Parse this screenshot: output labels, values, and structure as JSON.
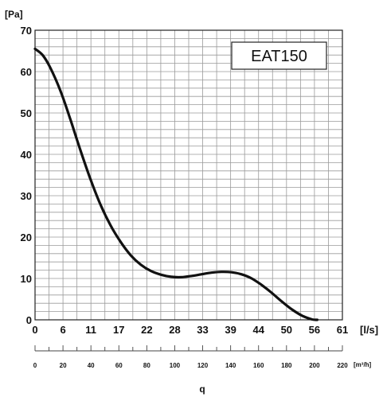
{
  "chart_data": {
    "type": "line",
    "title": "",
    "ylabel": "[Pa]",
    "xlabel": "[l/s]",
    "x2label": "[m³/h]",
    "bottom_label": "q",
    "annotation": "EAT150",
    "ylim": [
      0,
      70
    ],
    "xlim": [
      0,
      61
    ],
    "x2lim": [
      0,
      220
    ],
    "y_ticks": [
      "0",
      "10",
      "20",
      "30",
      "40",
      "50",
      "60",
      "70"
    ],
    "x_ticks": [
      "0",
      "6",
      "11",
      "17",
      "22",
      "28",
      "33",
      "39",
      "44",
      "50",
      "56",
      "61"
    ],
    "x2_ticks": [
      "0",
      "20",
      "40",
      "60",
      "80",
      "100",
      "120",
      "140",
      "160",
      "180",
      "200",
      "220"
    ],
    "grid": true,
    "series": [
      {
        "color": "#111111",
        "x": [
          0,
          1.5,
          3,
          5,
          7,
          9,
          11,
          13,
          15,
          17,
          19,
          21,
          23,
          25,
          27,
          29,
          31,
          33,
          35,
          37,
          39,
          41,
          43,
          45,
          47,
          49,
          51,
          53,
          55,
          56
        ],
        "y": [
          65.5,
          64,
          61,
          55.5,
          48.5,
          41,
          34,
          27.8,
          22.8,
          18.8,
          15.6,
          13.3,
          11.8,
          10.9,
          10.4,
          10.3,
          10.6,
          11,
          11.4,
          11.6,
          11.5,
          11,
          10,
          8.4,
          6.5,
          4.4,
          2.5,
          1,
          0.1,
          0
        ]
      }
    ]
  }
}
